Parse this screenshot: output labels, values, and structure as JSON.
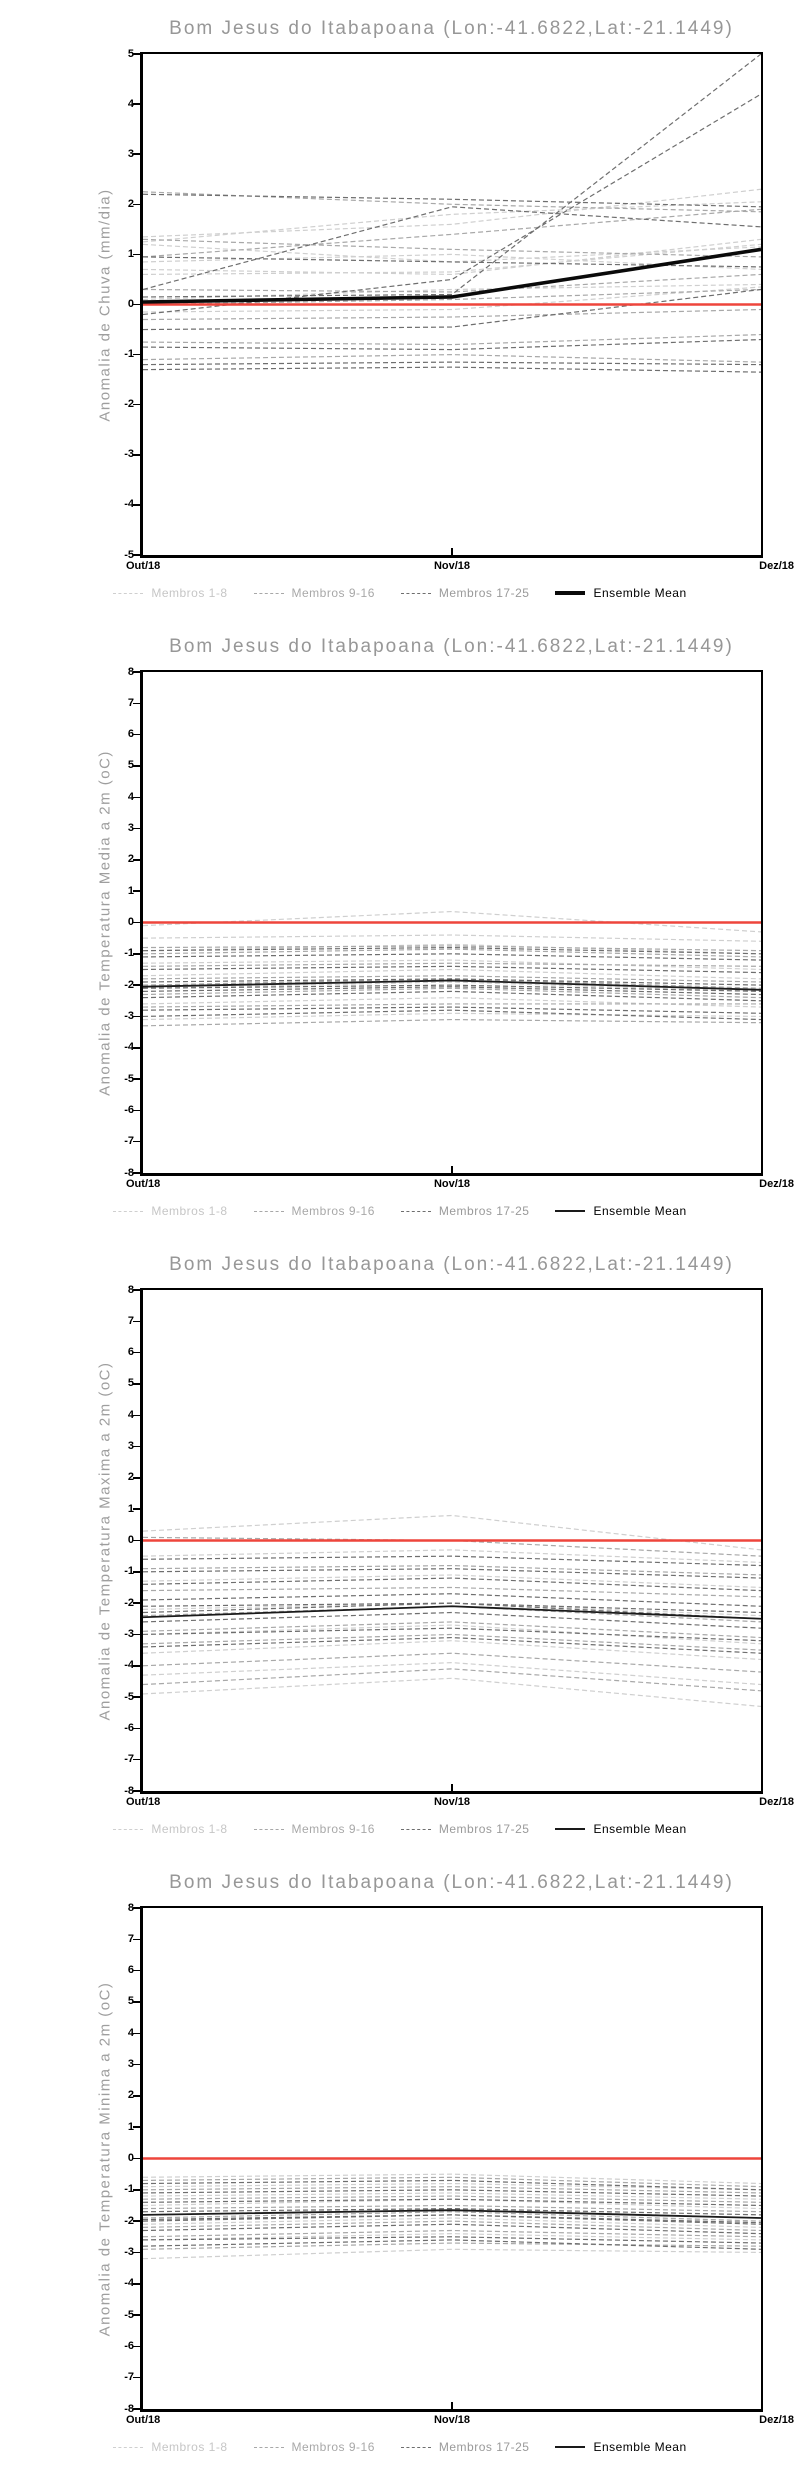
{
  "station": "Bom Jesus do Itabapoana",
  "coordinates": "(Lon:-41.6822,Lat:-21.1449)",
  "chart_data": [
    {
      "type": "line",
      "title": "Bom Jesus do Itabapoana (Lon:-41.6822,Lat:-21.1449)",
      "ylabel": "Anomalia de Chuva (mm/dia)",
      "categories": [
        "Out/18",
        "Nov/18",
        "Dez/18"
      ],
      "ylim": [
        -5,
        5
      ],
      "ytick_step": 1,
      "yticks": [
        5,
        4,
        3,
        2,
        1,
        0,
        -1,
        -2,
        -3,
        -4,
        -5
      ],
      "grid": false,
      "legend_position": "bottom",
      "zero_line": {
        "value": 0,
        "color": "#ee453c",
        "width": 2.4
      },
      "mean_line_width": 3.6,
      "mean_legend_width": 4,
      "groups": [
        {
          "name": "Membros 1-8",
          "color": "#cfcfcf",
          "text_color": "#c6c6c6",
          "series": [
            [
              1.35,
              1.6,
              2.3
            ],
            [
              1.25,
              1.8,
              2.05
            ],
            [
              1.2,
              0.85,
              1.15
            ],
            [
              0.85,
              1.0,
              0.7
            ],
            [
              0.7,
              0.6,
              1.3
            ],
            [
              0.6,
              0.65,
              1.2
            ],
            [
              0.1,
              0.3,
              0.4
            ],
            [
              -0.15,
              -0.1,
              0.35
            ]
          ]
        },
        {
          "name": "Membros 9-16",
          "color": "#a8a8a8",
          "text_color": "#a8a8a8",
          "series": [
            [
              2.25,
              2.0,
              1.85
            ],
            [
              1.3,
              1.1,
              0.95
            ],
            [
              0.95,
              1.4,
              1.9
            ],
            [
              0.3,
              0.25,
              0.6
            ],
            [
              0.0,
              0.1,
              0.3
            ],
            [
              -0.3,
              -0.25,
              -0.1
            ],
            [
              -0.75,
              -0.8,
              -0.6
            ],
            [
              -1.1,
              -1.0,
              -1.15
            ]
          ]
        },
        {
          "name": "Membros 17-25",
          "color": "#6e6e6e",
          "text_color": "#9a9a9a",
          "series": [
            [
              2.2,
              2.1,
              1.95
            ],
            [
              0.95,
              0.85,
              0.75
            ],
            [
              0.3,
              1.95,
              1.55
            ],
            [
              0.15,
              0.2,
              5.0
            ],
            [
              -0.2,
              0.5,
              4.2
            ],
            [
              -0.5,
              -0.45,
              0.3
            ],
            [
              -0.85,
              -0.9,
              -0.7
            ],
            [
              -1.2,
              -1.15,
              -1.2
            ],
            [
              -1.3,
              -1.25,
              -1.35
            ]
          ]
        }
      ],
      "mean": {
        "name": "Ensemble Mean",
        "color": "#0a0a0a",
        "values": [
          0.05,
          0.15,
          1.1
        ]
      }
    },
    {
      "type": "line",
      "title": "Bom Jesus do Itabapoana (Lon:-41.6822,Lat:-21.1449)",
      "ylabel": "Anomalia de Temperatura Media a 2m (oC)",
      "categories": [
        "Out/18",
        "Nov/18",
        "Dez/18"
      ],
      "ylim": [
        -8,
        8
      ],
      "ytick_step": 1,
      "yticks": [
        8,
        7,
        6,
        5,
        4,
        3,
        2,
        1,
        0,
        -1,
        -2,
        -3,
        -4,
        -5,
        -6,
        -7,
        -8
      ],
      "grid": false,
      "legend_position": "bottom",
      "zero_line": {
        "value": 0,
        "color": "#ee453c",
        "width": 2.4
      },
      "mean_line_width": 1.8,
      "mean_legend_width": 2,
      "groups": [
        {
          "name": "Membros 1-8",
          "color": "#cfcfcf",
          "text_color": "#c6c6c6",
          "series": [
            [
              -0.1,
              0.35,
              -0.3
            ],
            [
              -0.5,
              -0.4,
              -0.6
            ],
            [
              -0.9,
              -0.7,
              -1.0
            ],
            [
              -1.3,
              -1.2,
              -1.5
            ],
            [
              -1.7,
              -1.5,
              -1.8
            ],
            [
              -2.1,
              -1.9,
              -2.2
            ],
            [
              -2.6,
              -2.4,
              -2.7
            ],
            [
              -3.1,
              -2.9,
              -3.0
            ]
          ]
        },
        {
          "name": "Membros 9-16",
          "color": "#a8a8a8",
          "text_color": "#a8a8a8",
          "series": [
            [
              -0.8,
              -0.75,
              -0.9
            ],
            [
              -1.0,
              -0.85,
              -1.1
            ],
            [
              -1.4,
              -1.3,
              -1.4
            ],
            [
              -1.8,
              -1.7,
              -1.9
            ],
            [
              -2.0,
              -1.8,
              -2.1
            ],
            [
              -2.3,
              -2.1,
              -2.4
            ],
            [
              -2.7,
              -2.6,
              -2.6
            ],
            [
              -3.3,
              -3.1,
              -3.2
            ]
          ]
        },
        {
          "name": "Membros 17-25",
          "color": "#6e6e6e",
          "text_color": "#9a9a9a",
          "series": [
            [
              -0.9,
              -0.8,
              -1.0
            ],
            [
              -1.1,
              -1.0,
              -1.2
            ],
            [
              -1.5,
              -1.4,
              -1.6
            ],
            [
              -1.9,
              -1.8,
              -2.0
            ],
            [
              -2.1,
              -2.0,
              -2.2
            ],
            [
              -2.4,
              -2.2,
              -2.5
            ],
            [
              -2.8,
              -2.7,
              -2.9
            ],
            [
              -3.0,
              -2.8,
              -3.1
            ],
            [
              -2.2,
              -2.05,
              -2.3
            ]
          ]
        }
      ],
      "mean": {
        "name": "Ensemble Mean",
        "color": "#1a1a1a",
        "values": [
          -2.05,
          -1.85,
          -2.15
        ]
      }
    },
    {
      "type": "line",
      "title": "Bom Jesus do Itabapoana (Lon:-41.6822,Lat:-21.1449)",
      "ylabel": "Anomalia de Temperatura Maxima a 2m (oC)",
      "categories": [
        "Out/18",
        "Nov/18",
        "Dez/18"
      ],
      "ylim": [
        -8,
        8
      ],
      "ytick_step": 1,
      "yticks": [
        8,
        7,
        6,
        5,
        4,
        3,
        2,
        1,
        0,
        -1,
        -2,
        -3,
        -4,
        -5,
        -6,
        -7,
        -8
      ],
      "grid": false,
      "legend_position": "bottom",
      "zero_line": {
        "value": 0,
        "color": "#ee453c",
        "width": 2.4
      },
      "mean_line_width": 1.8,
      "mean_legend_width": 2,
      "groups": [
        {
          "name": "Membros 1-8",
          "color": "#cfcfcf",
          "text_color": "#c6c6c6",
          "series": [
            [
              0.3,
              0.8,
              -0.3
            ],
            [
              -0.5,
              -0.3,
              -0.7
            ],
            [
              -1.3,
              -1.1,
              -1.5
            ],
            [
              -2.2,
              -2.0,
              -2.4
            ],
            [
              -3.0,
              -2.7,
              -3.3
            ],
            [
              -3.6,
              -3.2,
              -3.8
            ],
            [
              -4.3,
              -3.9,
              -4.6
            ],
            [
              -4.9,
              -4.4,
              -5.3
            ]
          ]
        },
        {
          "name": "Membros 9-16",
          "color": "#a8a8a8",
          "text_color": "#a8a8a8",
          "series": [
            [
              0.1,
              0.0,
              -0.5
            ],
            [
              -0.9,
              -0.8,
              -1.1
            ],
            [
              -1.6,
              -1.5,
              -1.8
            ],
            [
              -2.4,
              -2.1,
              -2.6
            ],
            [
              -2.9,
              -2.6,
              -3.1
            ],
            [
              -3.3,
              -3.0,
              -3.5
            ],
            [
              -4.0,
              -3.6,
              -4.2
            ],
            [
              -4.6,
              -4.1,
              -4.8
            ]
          ]
        },
        {
          "name": "Membros 17-25",
          "color": "#6e6e6e",
          "text_color": "#9a9a9a",
          "series": [
            [
              -0.6,
              -0.5,
              -0.8
            ],
            [
              -1.0,
              -0.9,
              -1.2
            ],
            [
              -1.4,
              -1.2,
              -1.6
            ],
            [
              -1.9,
              -1.7,
              -2.1
            ],
            [
              -2.3,
              -2.0,
              -2.5
            ],
            [
              -2.6,
              -2.3,
              -2.8
            ],
            [
              -3.0,
              -2.8,
              -3.2
            ],
            [
              -3.4,
              -3.1,
              -3.6
            ],
            [
              -2.1,
              -2.0,
              -2.3
            ]
          ]
        }
      ],
      "mean": {
        "name": "Ensemble Mean",
        "color": "#1a1a1a",
        "values": [
          -2.45,
          -2.1,
          -2.5
        ]
      }
    },
    {
      "type": "line",
      "title": "Bom Jesus do Itabapoana (Lon:-41.6822,Lat:-21.1449)",
      "ylabel": "Anomalia de Temperatura Minima a 2m (oC)",
      "categories": [
        "Out/18",
        "Nov/18",
        "Dez/18"
      ],
      "ylim": [
        -8,
        8
      ],
      "ytick_step": 1,
      "yticks": [
        8,
        7,
        6,
        5,
        4,
        3,
        2,
        1,
        0,
        -1,
        -2,
        -3,
        -4,
        -5,
        -6,
        -7,
        -8
      ],
      "grid": false,
      "legend_position": "bottom",
      "zero_line": {
        "value": 0,
        "color": "#ee453c",
        "width": 2.4
      },
      "mean_line_width": 1.8,
      "mean_legend_width": 2,
      "groups": [
        {
          "name": "Membros 1-8",
          "color": "#cfcfcf",
          "text_color": "#c6c6c6",
          "series": [
            [
              -0.6,
              -0.5,
              -0.8
            ],
            [
              -0.9,
              -0.8,
              -1.0
            ],
            [
              -1.2,
              -1.1,
              -1.3
            ],
            [
              -1.5,
              -1.3,
              -1.6
            ],
            [
              -1.8,
              -1.6,
              -1.9
            ],
            [
              -2.1,
              -1.9,
              -2.2
            ],
            [
              -2.6,
              -2.4,
              -2.6
            ],
            [
              -3.2,
              -2.9,
              -3.0
            ]
          ]
        },
        {
          "name": "Membros 9-16",
          "color": "#a8a8a8",
          "text_color": "#a8a8a8",
          "series": [
            [
              -0.7,
              -0.6,
              -0.9
            ],
            [
              -1.0,
              -0.9,
              -1.1
            ],
            [
              -1.3,
              -1.2,
              -1.4
            ],
            [
              -1.6,
              -1.5,
              -1.7
            ],
            [
              -1.9,
              -1.7,
              -2.0
            ],
            [
              -2.2,
              -2.0,
              -2.3
            ],
            [
              -2.5,
              -2.3,
              -2.5
            ],
            [
              -2.9,
              -2.7,
              -2.8
            ]
          ]
        },
        {
          "name": "Membros 17-25",
          "color": "#6e6e6e",
          "text_color": "#9a9a9a",
          "series": [
            [
              -0.8,
              -0.7,
              -1.0
            ],
            [
              -1.1,
              -1.0,
              -1.2
            ],
            [
              -1.4,
              -1.3,
              -1.5
            ],
            [
              -1.7,
              -1.6,
              -1.8
            ],
            [
              -2.0,
              -1.8,
              -2.1
            ],
            [
              -2.3,
              -2.1,
              -2.4
            ],
            [
              -2.6,
              -2.5,
              -2.7
            ],
            [
              -2.8,
              -2.6,
              -2.9
            ],
            [
              -1.95,
              -1.8,
              -2.05
            ]
          ]
        }
      ],
      "mean": {
        "name": "Ensemble Mean",
        "color": "#1a1a1a",
        "values": [
          -1.8,
          -1.65,
          -1.9
        ]
      }
    }
  ]
}
